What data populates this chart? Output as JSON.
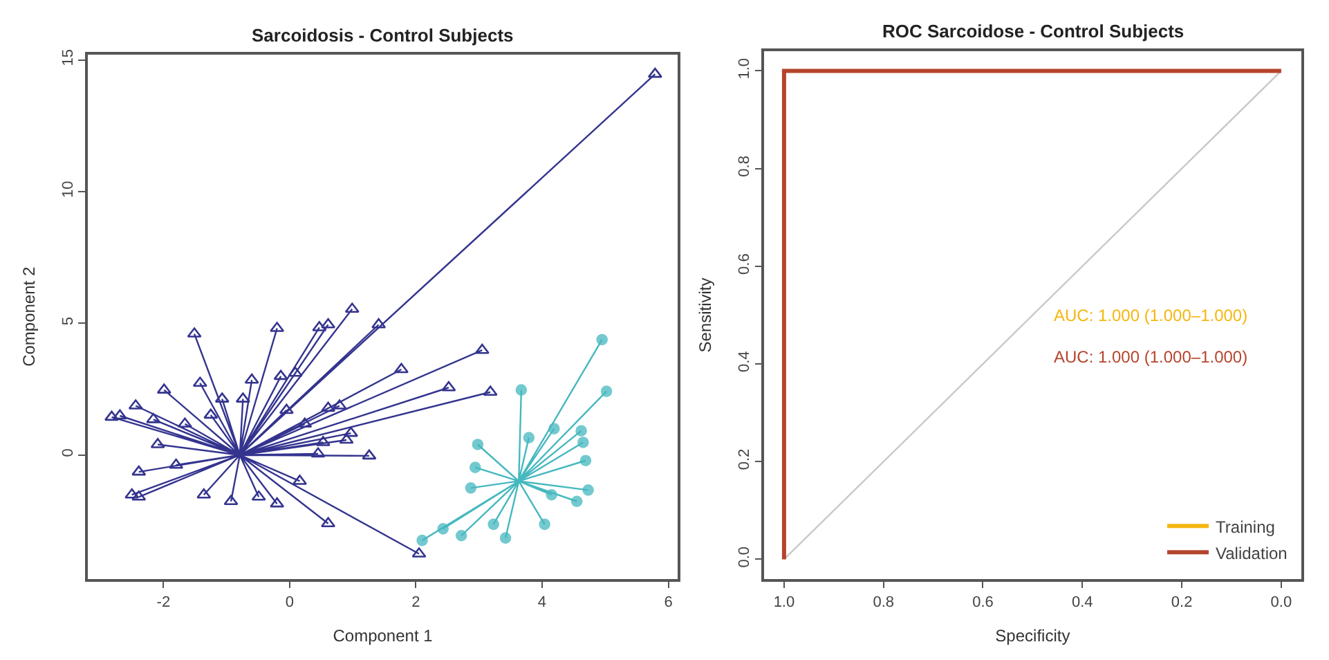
{
  "chart_data": [
    {
      "type": "scatter",
      "title": "Sarcoidosis - Control Subjects",
      "xlabel": "Component 1",
      "ylabel": "Component 2",
      "xlim": [
        -3.2,
        6.15
      ],
      "ylim": [
        -4.7,
        15.2
      ],
      "xticks": [
        -2,
        0,
        2,
        4,
        6
      ],
      "yticks": [
        0,
        5,
        10,
        15
      ],
      "legend": false,
      "series": [
        {
          "type": "line",
          "marker": "none",
          "color": "#34348f",
          "x": [
            -0.79,
            5.79,
            -0.79,
            1.41,
            -0.79,
            0.99,
            -0.79,
            0.61,
            -0.79,
            0.47,
            -0.79,
            -0.2,
            -0.79,
            -1.51,
            -0.79,
            3.05,
            -0.79,
            1.77,
            -0.79,
            2.52,
            -0.79,
            3.18,
            -0.79,
            -0.6,
            -0.79,
            -0.14,
            -0.79,
            0.09,
            -0.79,
            -1.42,
            -0.79,
            -1.99,
            -0.79,
            -2.44,
            -0.79,
            -2.82,
            -0.79,
            -2.69,
            -0.79,
            -1.07,
            -0.79,
            -0.74,
            -0.79,
            0.79,
            -0.79,
            0.61,
            -0.79,
            0.97,
            -0.79,
            0.9,
            -0.79,
            1.26,
            -0.79,
            0.45,
            -0.79,
            -2.09,
            -0.79,
            -2.39,
            -0.79,
            -2.5,
            -0.79,
            -2.39,
            -0.79,
            -1.36,
            -0.79,
            -0.93,
            -0.79,
            -0.2,
            -0.79,
            0.16,
            -0.79,
            0.61,
            -0.79,
            2.05,
            -0.79,
            -1.66,
            -0.79,
            -1.25,
            -0.79,
            -0.05,
            -0.79,
            0.24,
            -0.79,
            -1.8,
            -0.79,
            -0.49,
            -0.79,
            0.53,
            -0.79,
            -2.16
          ],
          "values": [
            0,
            14.46,
            0,
            4.95,
            0,
            5.54,
            0,
            4.95,
            0,
            4.84,
            0,
            4.81,
            0,
            4.6,
            0,
            3.98,
            0,
            3.25,
            0,
            2.56,
            0,
            2.39,
            0,
            2.85,
            0,
            2.99,
            0,
            3.11,
            0,
            2.73,
            0,
            2.47,
            0,
            1.87,
            0,
            1.44,
            0,
            1.49,
            0,
            2.13,
            0,
            2.13,
            0,
            1.87,
            0,
            1.78,
            0,
            0.83,
            0,
            0.57,
            0,
            -0.03,
            0,
            0.05,
            0,
            0.4,
            0,
            -0.64,
            0,
            -1.51,
            0,
            -1.59,
            0,
            -1.51,
            0,
            -1.76,
            0,
            -1.85,
            0,
            -0.99,
            0,
            -2.6,
            0,
            -3.75,
            0,
            1.18,
            0,
            1.52,
            0,
            1.7,
            0,
            1.18,
            0,
            -0.38,
            0,
            -1.59,
            0,
            0.48,
            0,
            1.35
          ]
        },
        {
          "type": "scatter",
          "marker": "triangle",
          "color": "#34348f",
          "x": [
            5.79,
            1.41,
            0.99,
            0.61,
            0.47,
            -0.2,
            -1.51,
            3.05,
            1.77,
            2.52,
            3.18,
            -0.6,
            -0.14,
            0.09,
            -1.42,
            -1.99,
            -2.44,
            -2.82,
            -2.69,
            -1.07,
            -0.74,
            0.79,
            0.61,
            0.97,
            0.9,
            1.26,
            0.45,
            -2.09,
            -2.39,
            -2.5,
            -2.39,
            -1.36,
            -0.93,
            -0.2,
            0.16,
            0.61,
            2.05,
            -1.66,
            -1.25,
            -0.05,
            0.24,
            -1.8,
            -0.49,
            0.53,
            -2.16
          ],
          "values": [
            14.46,
            4.95,
            5.54,
            4.95,
            4.84,
            4.81,
            4.6,
            3.98,
            3.25,
            2.56,
            2.39,
            2.85,
            2.99,
            3.11,
            2.73,
            2.47,
            1.87,
            1.44,
            1.49,
            2.13,
            2.13,
            1.87,
            1.78,
            0.83,
            0.57,
            -0.03,
            0.05,
            0.4,
            -0.64,
            -1.51,
            -1.59,
            -1.51,
            -1.76,
            -1.85,
            -0.99,
            -2.6,
            -3.75,
            1.18,
            1.52,
            1.7,
            1.18,
            -0.38,
            -1.59,
            0.48,
            1.35
          ]
        },
        {
          "type": "line",
          "marker": "none",
          "color": "#45b8bf",
          "x": [
            3.63,
            4.95,
            3.63,
            5.02,
            3.63,
            3.67,
            3.63,
            4.62,
            3.63,
            4.65,
            3.63,
            4.69,
            3.63,
            4.73,
            3.63,
            4.15,
            3.63,
            4.04,
            3.63,
            3.42,
            3.63,
            2.72,
            3.63,
            2.1,
            3.63,
            2.43,
            3.63,
            2.87,
            3.63,
            2.94,
            3.63,
            2.98,
            3.63,
            3.79,
            3.63,
            4.19,
            3.63,
            3.23,
            3.63,
            4.55
          ],
          "values": [
            -0.99,
            4.38,
            -0.99,
            2.42,
            -0.99,
            2.47,
            -0.99,
            0.92,
            -0.99,
            0.48,
            -0.99,
            -0.21,
            -0.99,
            -1.33,
            -0.99,
            -1.51,
            -0.99,
            -2.63,
            -0.99,
            -3.15,
            -0.99,
            -3.06,
            -0.99,
            -3.24,
            -0.99,
            -2.8,
            -0.99,
            -1.25,
            -0.99,
            -0.47,
            -0.99,
            0.4,
            -0.99,
            0.66,
            -0.99,
            1.0,
            -0.99,
            -2.63,
            -0.99,
            -1.76
          ]
        },
        {
          "type": "scatter",
          "marker": "circle",
          "color": "#45b8bf",
          "x": [
            4.95,
            5.02,
            3.67,
            4.62,
            4.65,
            4.69,
            4.73,
            4.15,
            4.04,
            3.42,
            2.72,
            2.1,
            2.43,
            2.87,
            2.94,
            2.98,
            3.79,
            4.19,
            3.23,
            4.55
          ],
          "values": [
            4.38,
            2.42,
            2.47,
            0.92,
            0.48,
            -0.21,
            -1.33,
            -1.51,
            -2.63,
            -3.15,
            -3.06,
            -3.24,
            -2.8,
            -1.25,
            -0.47,
            0.4,
            0.66,
            1.0,
            -2.63,
            -1.76
          ]
        }
      ]
    },
    {
      "type": "line",
      "title": "ROC Sarcoidose - Control Subjects",
      "xlabel": "Specificity",
      "ylabel": "Sensitivity",
      "xlim": [
        1.04,
        -0.04
      ],
      "ylim": [
        -0.04,
        1.04
      ],
      "xticks": [
        {
          "value": 1,
          "label": "1.0"
        },
        0.8,
        0.6,
        0.4,
        0.2,
        {
          "value": 0,
          "label": "0.0"
        }
      ],
      "yticks": [
        {
          "value": 0,
          "label": "0.0"
        },
        0.2,
        0.4,
        0.6,
        0.8,
        {
          "value": 1,
          "label": "1.0"
        }
      ],
      "legend": "bottom right",
      "marker": "none",
      "line_style": "solid",
      "annotations": [
        "AUC: 1.000 (1.000–1.000)",
        "AUC: 1.000 (1.000–1.000)"
      ],
      "series": [
        {
          "color": "#c8c8c8",
          "x": [
            1,
            0
          ],
          "values": [
            0,
            1
          ]
        },
        {
          "name": "Training",
          "color": "#f5b60f"
        },
        {
          "name": "Validation",
          "color": "#b5442c",
          "x": [
            1,
            1,
            0
          ],
          "values": [
            0,
            1,
            1
          ]
        }
      ]
    }
  ]
}
